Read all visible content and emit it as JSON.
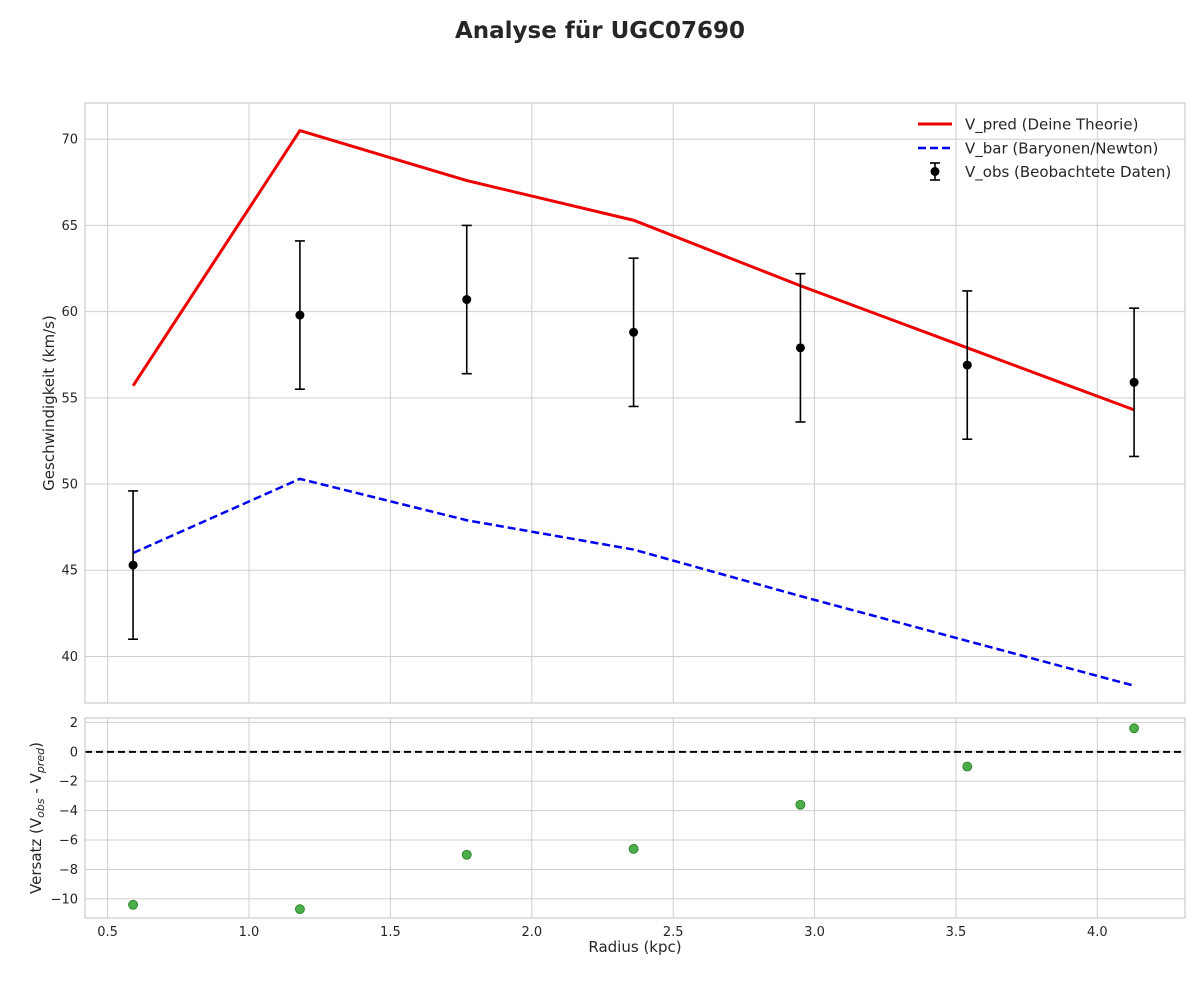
{
  "chart_data": [
    {
      "type": "line",
      "title": "Analyse für UGC07690",
      "xlabel": "",
      "ylabel": "Geschwindigkeit (km/s)",
      "xlim": [
        0.42,
        4.31
      ],
      "ylim": [
        37.3,
        72.1
      ],
      "grid": true,
      "legend_position": "top-right",
      "x_ticks": [
        "0.5",
        "1.0",
        "1.5",
        "2.0",
        "2.5",
        "3.0",
        "3.5",
        "4.0"
      ],
      "y_ticks": [
        "40",
        "45",
        "50",
        "55",
        "60",
        "65",
        "70"
      ],
      "x": [
        0.59,
        1.18,
        1.77,
        2.36,
        2.95,
        3.54,
        4.13
      ],
      "series": [
        {
          "name": "V_pred (Deine Theorie)",
          "style": "solid",
          "color": "#ee0000",
          "values": [
            55.7,
            70.5,
            67.6,
            65.3,
            61.5,
            57.9,
            54.3
          ]
        },
        {
          "name": "V_bar (Baryonen/Newton)",
          "style": "dashed",
          "color": "#0000ee",
          "values": [
            46.0,
            50.3,
            47.9,
            46.2,
            43.5,
            40.9,
            38.3
          ]
        },
        {
          "name": "V_obs (Beobachtete Daten)",
          "style": "errorbar",
          "color": "#000000",
          "values": [
            45.3,
            59.8,
            60.7,
            58.8,
            57.9,
            56.9,
            55.9
          ],
          "errors": [
            4.3,
            4.3,
            4.3,
            4.3,
            4.3,
            4.3,
            4.3
          ]
        }
      ]
    },
    {
      "type": "scatter",
      "title": "",
      "xlabel": "Radius (kpc)",
      "ylabel_parts": [
        "Versatz (V",
        "obs",
        " - V",
        "pred",
        ")"
      ],
      "xlim": [
        0.42,
        4.31
      ],
      "ylim": [
        -11.3,
        2.3
      ],
      "grid": true,
      "x_ticks": [
        "0.5",
        "1.0",
        "1.5",
        "2.0",
        "2.5",
        "3.0",
        "3.5",
        "4.0"
      ],
      "y_ticks": [
        "−10",
        "−8",
        "−6",
        "−4",
        "−2",
        "0",
        "2"
      ],
      "reference_line": 0,
      "marker_color": "#2ca02c",
      "x": [
        0.59,
        1.18,
        1.77,
        2.36,
        2.95,
        3.54,
        4.13
      ],
      "values": [
        -10.4,
        -10.7,
        -7.0,
        -6.6,
        -3.6,
        -1.0,
        1.6
      ]
    }
  ]
}
